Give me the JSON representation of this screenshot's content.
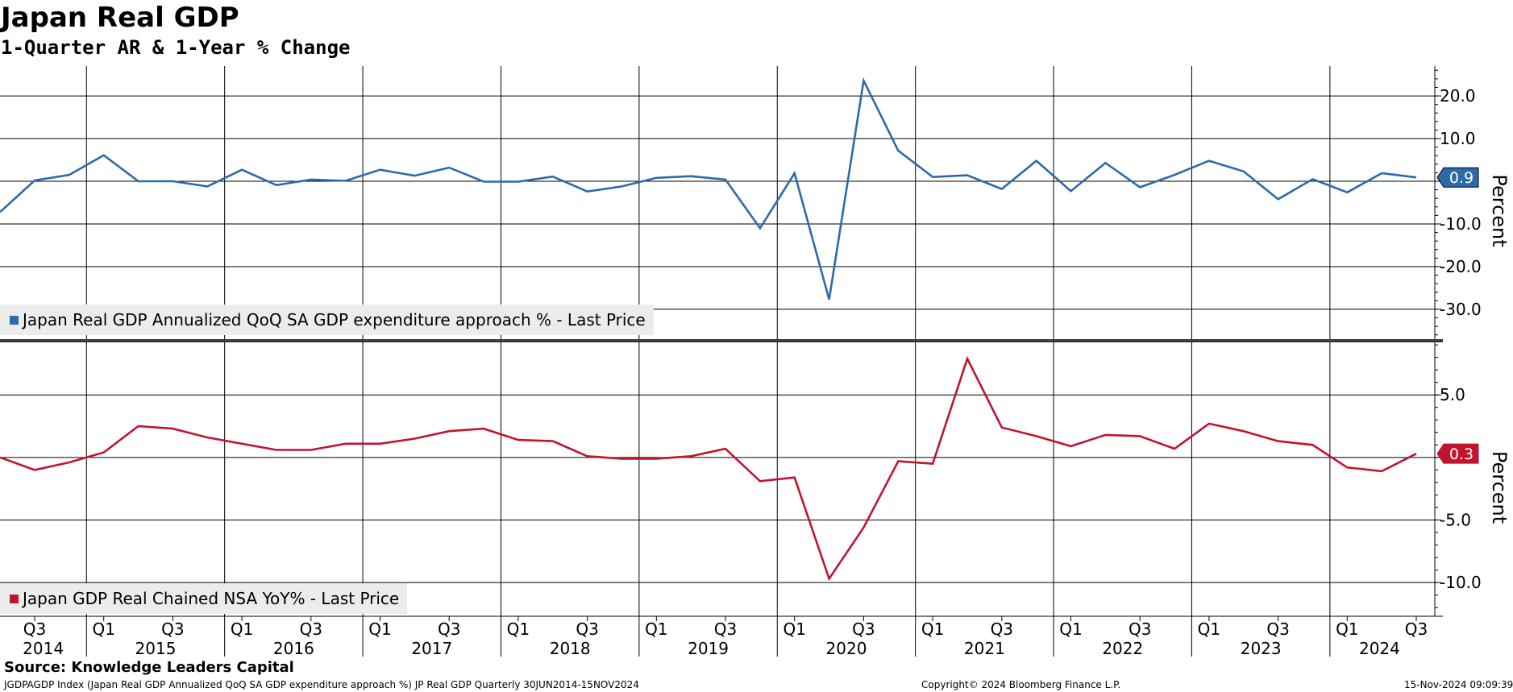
{
  "title": "Japan Real GDP",
  "subtitle": "1-Quarter AR & 1-Year % Change",
  "source": "Source: Knowledge Leaders Capital",
  "footer": {
    "left": "JGDPAGDP Index (Japan Real GDP Annualized QoQ SA GDP expenditure approach %) JP Real GDP  Quarterly 30JUN2014-15NOV2024",
    "center": "Copyright© 2024 Bloomberg Finance L.P.",
    "right": "15-Nov-2024 09:09:39"
  },
  "chart_data": [
    {
      "type": "line",
      "ylabel": "Percent",
      "yticks": [
        20,
        10,
        0,
        -10,
        -20,
        -30
      ],
      "ytick_labels": [
        "20.0",
        "10.0",
        "",
        "-10.0",
        "-20.0",
        "-30.0"
      ],
      "ylim": [
        -37,
        27
      ],
      "grid": true,
      "legend_position": "bottom-left",
      "color": "#2d6aa8",
      "last_value_label": "0.9",
      "x": [
        "2014-Q2",
        "2014-Q3",
        "2014-Q4",
        "2015-Q1",
        "2015-Q2",
        "2015-Q3",
        "2015-Q4",
        "2016-Q1",
        "2016-Q2",
        "2016-Q3",
        "2016-Q4",
        "2017-Q1",
        "2017-Q2",
        "2017-Q3",
        "2017-Q4",
        "2018-Q1",
        "2018-Q2",
        "2018-Q3",
        "2018-Q4",
        "2019-Q1",
        "2019-Q2",
        "2019-Q3",
        "2019-Q4",
        "2020-Q1",
        "2020-Q2",
        "2020-Q3",
        "2020-Q4",
        "2021-Q1",
        "2021-Q2",
        "2021-Q3",
        "2021-Q4",
        "2022-Q1",
        "2022-Q2",
        "2022-Q3",
        "2022-Q4",
        "2023-Q1",
        "2023-Q2",
        "2023-Q3",
        "2023-Q4",
        "2024-Q1",
        "2024-Q2",
        "2024-Q3"
      ],
      "series": [
        {
          "name": "Japan Real GDP Annualized QoQ SA GDP expenditure approach % - Last Price",
          "values": [
            -7.2,
            0.2,
            1.5,
            6.1,
            0.0,
            0.0,
            -1.2,
            2.7,
            -0.9,
            0.4,
            0.1,
            2.7,
            1.3,
            3.2,
            -0.1,
            -0.1,
            1.1,
            -2.4,
            -1.2,
            0.8,
            1.2,
            0.4,
            -11.0,
            1.9,
            -27.7,
            23.6,
            7.2,
            1.0,
            1.4,
            -1.8,
            4.8,
            -2.3,
            4.3,
            -1.4,
            1.5,
            4.8,
            2.3,
            -4.2,
            0.5,
            -2.6,
            1.9,
            0.9
          ]
        }
      ]
    },
    {
      "type": "line",
      "ylabel": "Percent",
      "yticks": [
        5,
        0,
        -5,
        -10
      ],
      "ytick_labels": [
        "5.0",
        "",
        "-5.0",
        "-10.0"
      ],
      "ylim": [
        -12.7,
        9.2
      ],
      "grid": true,
      "legend_position": "bottom-left",
      "color": "#c0152f",
      "last_value_label": "0.3",
      "x": [
        "2014-Q2",
        "2014-Q3",
        "2014-Q4",
        "2015-Q1",
        "2015-Q2",
        "2015-Q3",
        "2015-Q4",
        "2016-Q1",
        "2016-Q2",
        "2016-Q3",
        "2016-Q4",
        "2017-Q1",
        "2017-Q2",
        "2017-Q3",
        "2017-Q4",
        "2018-Q1",
        "2018-Q2",
        "2018-Q3",
        "2018-Q4",
        "2019-Q1",
        "2019-Q2",
        "2019-Q3",
        "2019-Q4",
        "2020-Q1",
        "2020-Q2",
        "2020-Q3",
        "2020-Q4",
        "2021-Q1",
        "2021-Q2",
        "2021-Q3",
        "2021-Q4",
        "2022-Q1",
        "2022-Q2",
        "2022-Q3",
        "2022-Q4",
        "2023-Q1",
        "2023-Q2",
        "2023-Q3",
        "2023-Q4",
        "2024-Q1",
        "2024-Q2",
        "2024-Q3"
      ],
      "series": [
        {
          "name": "Japan GDP Real Chained NSA YoY% - Last Price",
          "values": [
            0.0,
            -1.0,
            -0.4,
            0.4,
            2.5,
            2.3,
            1.6,
            1.1,
            0.6,
            0.6,
            1.1,
            1.1,
            1.5,
            2.1,
            2.3,
            1.4,
            1.3,
            0.1,
            -0.1,
            -0.1,
            0.1,
            0.7,
            -1.9,
            -1.6,
            -9.7,
            -5.6,
            -0.3,
            -0.5,
            7.9,
            2.4,
            1.7,
            0.9,
            1.8,
            1.7,
            0.7,
            2.7,
            2.1,
            1.3,
            1.0,
            -0.8,
            -1.1,
            0.3
          ]
        }
      ]
    }
  ],
  "x_axis": {
    "quarter_ticks": [
      {
        "x": "2014-Q3",
        "label": "Q3"
      },
      {
        "x": "2015-Q1",
        "label": "Q1"
      },
      {
        "x": "2015-Q3",
        "label": "Q3"
      },
      {
        "x": "2016-Q1",
        "label": "Q1"
      },
      {
        "x": "2016-Q3",
        "label": "Q3"
      },
      {
        "x": "2017-Q1",
        "label": "Q1"
      },
      {
        "x": "2017-Q3",
        "label": "Q3"
      },
      {
        "x": "2018-Q1",
        "label": "Q1"
      },
      {
        "x": "2018-Q3",
        "label": "Q3"
      },
      {
        "x": "2019-Q1",
        "label": "Q1"
      },
      {
        "x": "2019-Q3",
        "label": "Q3"
      },
      {
        "x": "2020-Q1",
        "label": "Q1"
      },
      {
        "x": "2020-Q3",
        "label": "Q3"
      },
      {
        "x": "2021-Q1",
        "label": "Q1"
      },
      {
        "x": "2021-Q3",
        "label": "Q3"
      },
      {
        "x": "2022-Q1",
        "label": "Q1"
      },
      {
        "x": "2022-Q3",
        "label": "Q3"
      },
      {
        "x": "2023-Q1",
        "label": "Q1"
      },
      {
        "x": "2023-Q3",
        "label": "Q3"
      },
      {
        "x": "2024-Q1",
        "label": "Q1"
      },
      {
        "x": "2024-Q3",
        "label": "Q3"
      }
    ],
    "year_labels": [
      "2014",
      "2015",
      "2016",
      "2017",
      "2018",
      "2019",
      "2020",
      "2021",
      "2022",
      "2023",
      "2024"
    ]
  }
}
